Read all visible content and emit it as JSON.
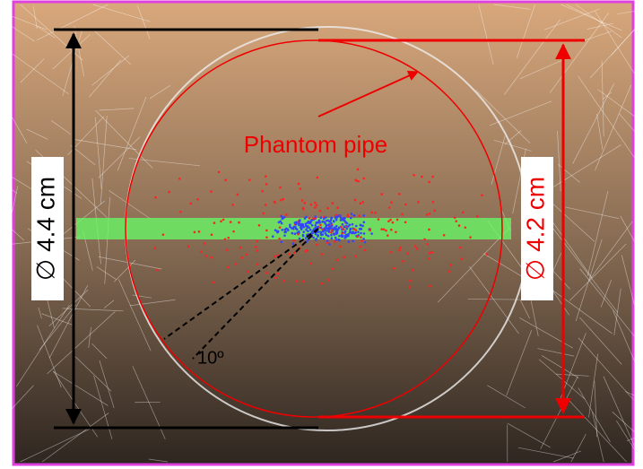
{
  "annotations": {
    "pipe_label": "Phantom pipe",
    "outer_diameter": "∅ 4.4 cm",
    "inner_diameter": "∅ 4.2 cm",
    "angle": "10º"
  }
}
